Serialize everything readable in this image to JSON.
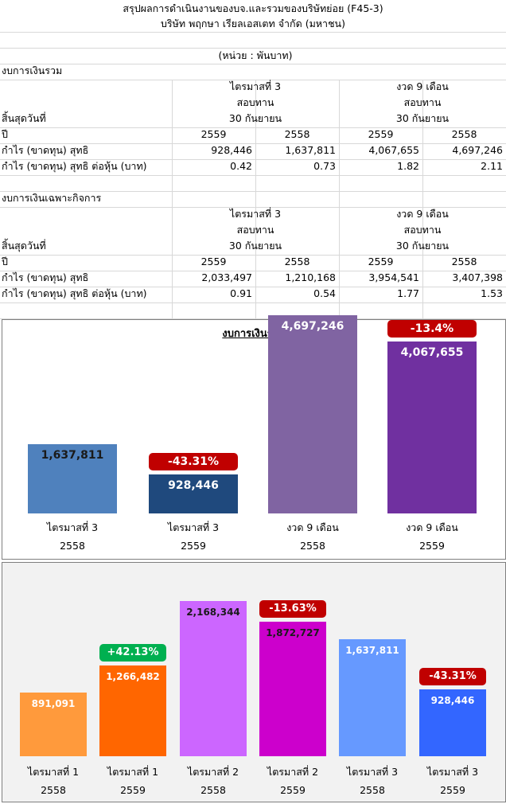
{
  "header": {
    "title": "สรุปผลการดำเนินงานของบจ.และรวมของบริษัทย่อย (F45-3)",
    "company": "บริษัท พฤกษา เรียลเอสเตท จำกัด (มหาชน)",
    "unit": "(หน่วย : พันบาท)"
  },
  "consolidated": {
    "section_title": "งบการเงินรวม",
    "period_q3": "ไตรมาสที่ 3",
    "period_9m": "งวด 9 เดือน",
    "reviewed_q3": "สอบทาน",
    "reviewed_9m": "สอบทาน",
    "ended_label": "สิ้นสุดวันที่",
    "ended_q3": "30 กันยายน",
    "ended_9m": "30 กันยายน",
    "year_label": "ปี",
    "years": [
      "2559",
      "2558",
      "2559",
      "2558"
    ],
    "profit_label": "กำไร (ขาดทุน) สุทธิ",
    "profit": [
      "928,446",
      "1,637,811",
      "4,067,655",
      "4,697,246"
    ],
    "eps_label": "กำไร (ขาดทุน) สุทธิ ต่อหุ้น (บาท)",
    "eps": [
      "0.42",
      "0.73",
      "1.82",
      "2.11"
    ]
  },
  "separate": {
    "section_title": "งบการเงินเฉพาะกิจการ",
    "period_q3": "ไตรมาสที่ 3",
    "period_9m": "งวด 9 เดือน",
    "reviewed_q3": "สอบทาน",
    "reviewed_9m": "สอบทาน",
    "ended_label": "สิ้นสุดวันที่",
    "ended_q3": "30 กันยายน",
    "ended_9m": "30 กันยายน",
    "year_label": "ปี",
    "years": [
      "2559",
      "2558",
      "2559",
      "2558"
    ],
    "profit_label": "กำไร (ขาดทุน) สุทธิ",
    "profit": [
      "2,033,497",
      "1,210,168",
      "3,954,541",
      "3,407,398"
    ],
    "eps_label": "กำไร (ขาดทุน) สุทธิ ต่อหุ้น (บาท)",
    "eps": [
      "0.91",
      "0.54",
      "1.77",
      "1.53"
    ]
  },
  "chart_data": [
    {
      "type": "bar",
      "title": "งบการเงินรวม",
      "ylim": [
        0,
        5000000
      ],
      "bars": [
        {
          "cat": "ไตรมาสที่ 3",
          "year": "2558",
          "value": 1637811,
          "label": "1,637,811",
          "color": "#4f81bd",
          "text_color": "#1a1a1a",
          "change": null
        },
        {
          "cat": "ไตรมาสที่ 3",
          "year": "2559",
          "value": 928446,
          "label": "928,446",
          "color": "#1f497d",
          "text_color": "#ffffff",
          "change": "-43.31%",
          "change_color": "#c00000"
        },
        {
          "cat": "งวด 9 เดือน",
          "year": "2558",
          "value": 4697246,
          "label": "4,697,246",
          "color": "#8064a2",
          "text_color": "#ffffff",
          "change": null
        },
        {
          "cat": "งวด 9 เดือน",
          "year": "2559",
          "value": 4067655,
          "label": "4,067,655",
          "color": "#7030a0",
          "text_color": "#ffffff",
          "change": "-13.4%",
          "change_color": "#c00000"
        }
      ]
    },
    {
      "type": "bar",
      "title": "",
      "ylim": [
        0,
        2600000
      ],
      "bars": [
        {
          "cat": "ไตรมาสที่ 1",
          "year": "2558",
          "value": 891091,
          "label": "891,091",
          "color": "#ff9a3c",
          "text_color": "#ffffff",
          "change": null
        },
        {
          "cat": "ไตรมาสที่ 1",
          "year": "2559",
          "value": 1266482,
          "label": "1,266,482",
          "color": "#ff6600",
          "text_color": "#ffffff",
          "change": "+42.13%",
          "change_color": "#00b050"
        },
        {
          "cat": "ไตรมาสที่ 2",
          "year": "2558",
          "value": 2168344,
          "label": "2,168,344",
          "color": "#cc66ff",
          "text_color": "#1a1a1a",
          "change": null
        },
        {
          "cat": "ไตรมาสที่ 2",
          "year": "2559",
          "value": 1872727,
          "label": "1,872,727",
          "color": "#cc00cc",
          "text_color": "#1a1a1a",
          "change": "-13.63%",
          "change_color": "#c00000"
        },
        {
          "cat": "ไตรมาสที่ 3",
          "year": "2558",
          "value": 1637811,
          "label": "1,637,811",
          "color": "#6699ff",
          "text_color": "#ffffff",
          "change": null
        },
        {
          "cat": "ไตรมาสที่ 3",
          "year": "2559",
          "value": 928446,
          "label": "928,446",
          "color": "#3366ff",
          "text_color": "#ffffff",
          "change": "-43.31%",
          "change_color": "#c00000"
        }
      ]
    }
  ]
}
